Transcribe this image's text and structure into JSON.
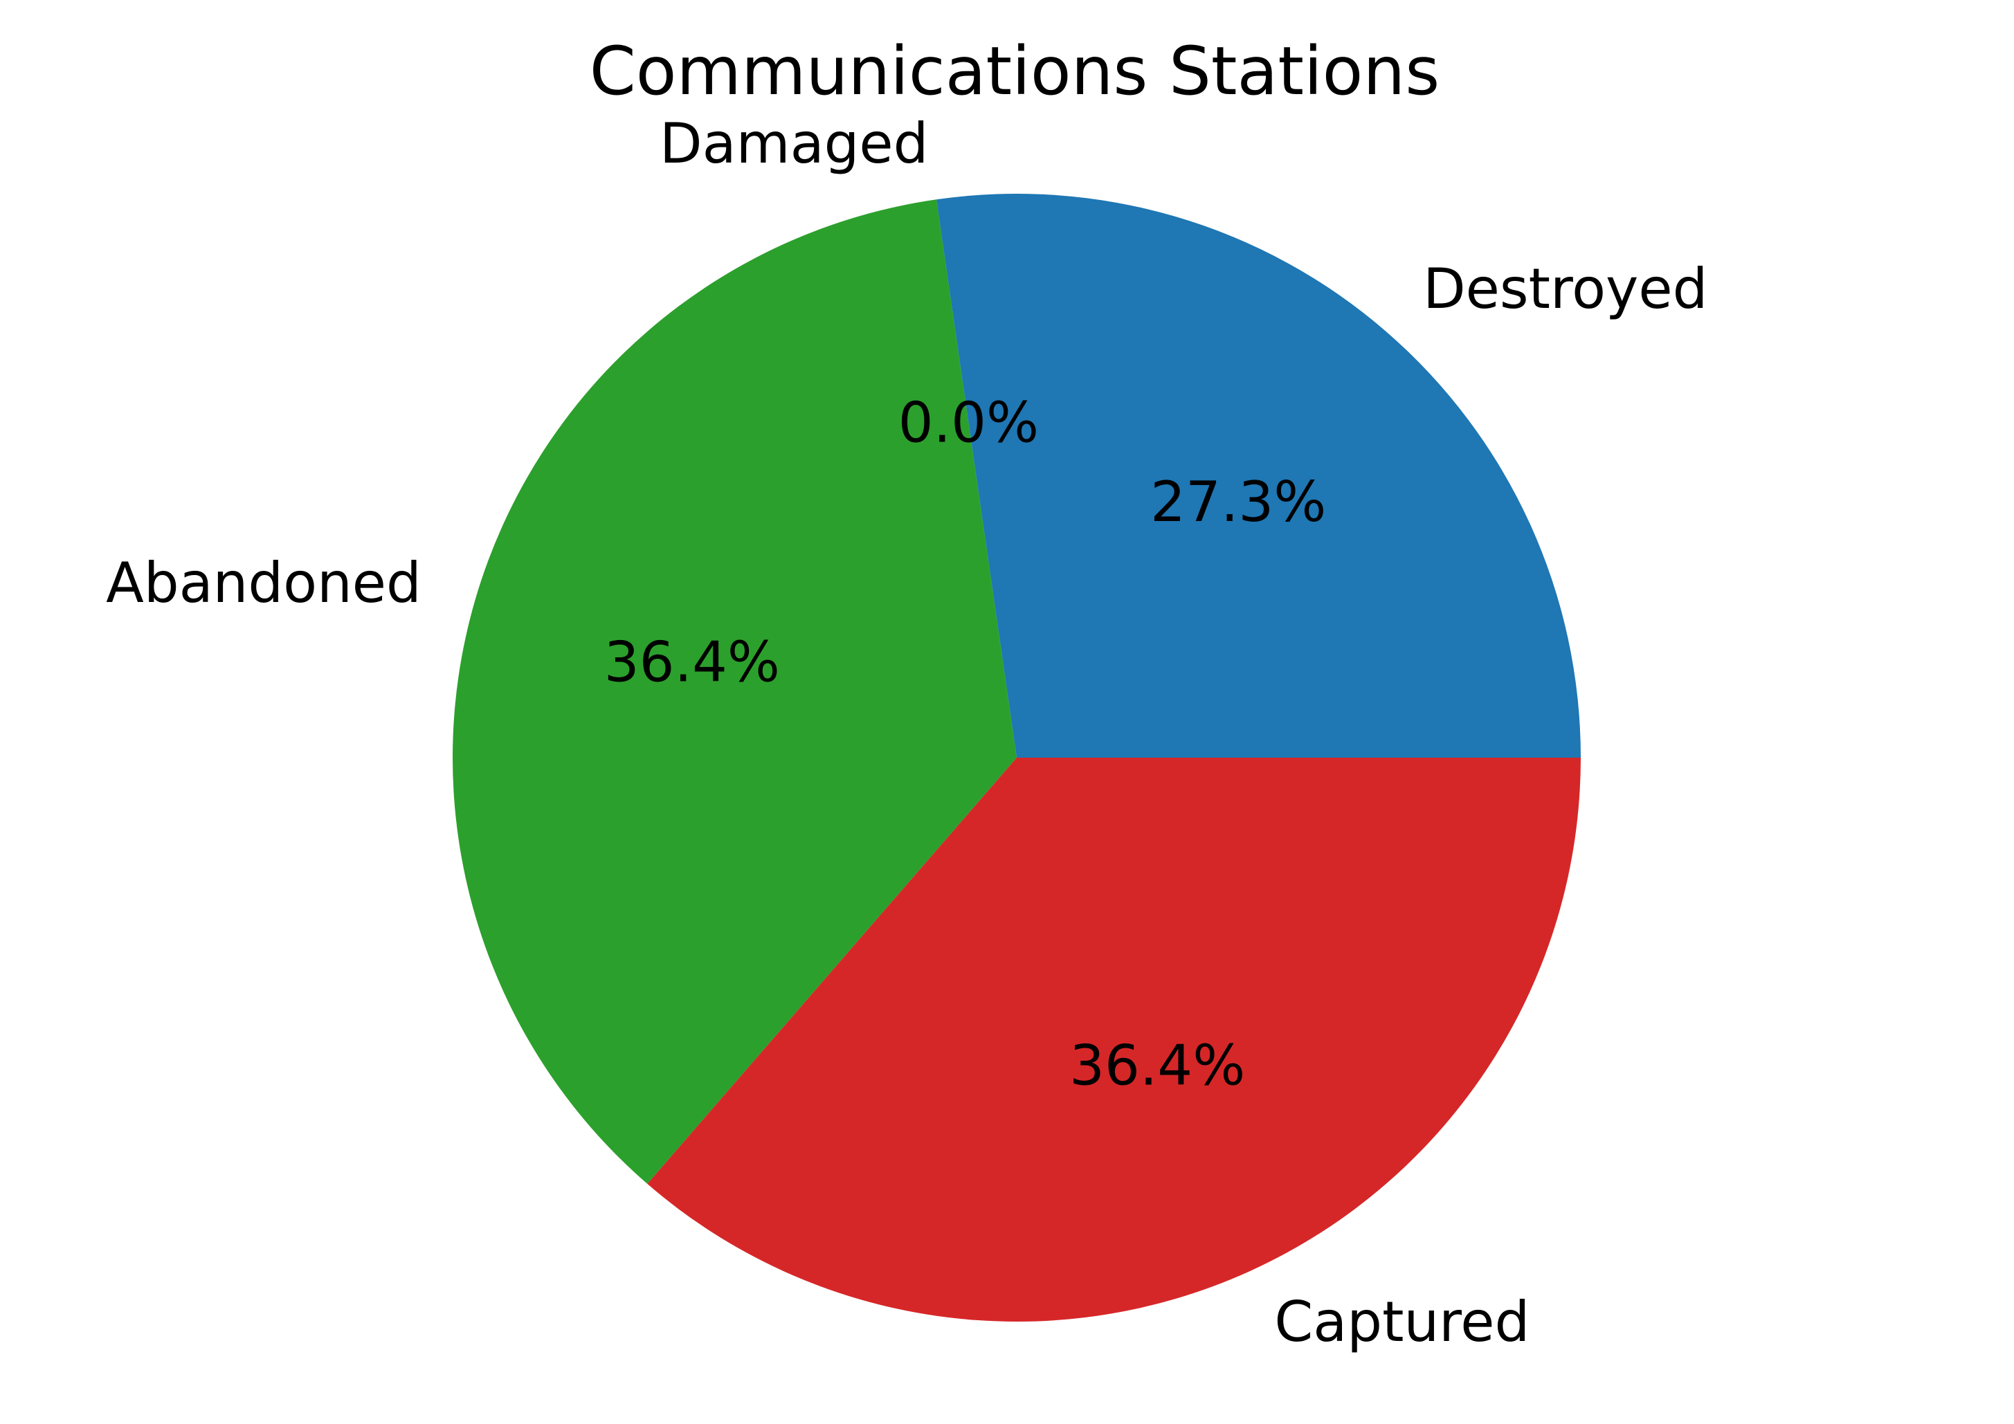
{
  "chart_data": {
    "type": "pie",
    "title": "Communications Stations",
    "categories": [
      "Destroyed",
      "Damaged",
      "Abandoned",
      "Captured"
    ],
    "values": [
      27.3,
      0.0,
      36.4,
      36.4
    ],
    "value_labels": [
      "27.3%",
      "0.0%",
      "36.4%",
      "36.4%"
    ],
    "colors": [
      "#1f77b4",
      "#ff7f0e",
      "#2ca02c",
      "#d62728"
    ],
    "start_angle_deg": 0,
    "direction": "counterclockwise",
    "legend": "none"
  }
}
